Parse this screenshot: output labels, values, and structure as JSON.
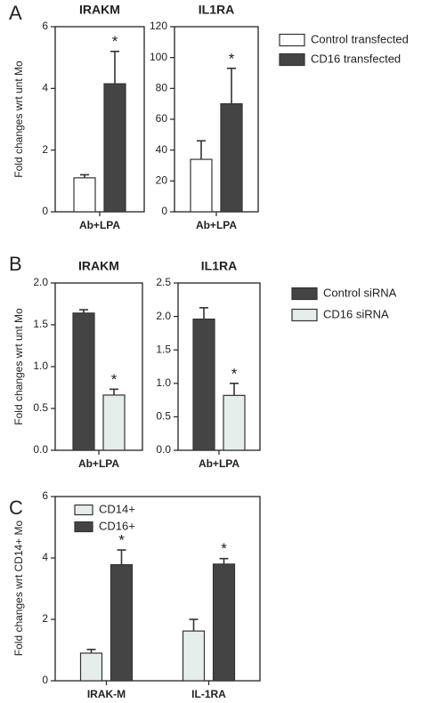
{
  "chart_data": [
    {
      "type": "bar",
      "panel": "A",
      "ylabel": "Fold changes wrt unt Mo",
      "series": [
        {
          "name": "Control transfected",
          "color": "#ffffff"
        },
        {
          "name": "CD16 transfected",
          "color": "#444444"
        }
      ],
      "plots": [
        {
          "title": "IRAKM",
          "categories": [
            "Ab+LPA"
          ],
          "ylim": [
            0,
            6
          ],
          "yticks": [
            0,
            2,
            4,
            6
          ],
          "series": [
            {
              "values": [
                1.1
              ],
              "errors": [
                0.1
              ]
            },
            {
              "values": [
                4.15
              ],
              "errors": [
                1.05
              ],
              "annotations": [
                "*"
              ]
            }
          ]
        },
        {
          "title": "IL1RA",
          "categories": [
            "Ab+LPA"
          ],
          "ylim": [
            0,
            120
          ],
          "yticks": [
            0,
            20,
            40,
            60,
            80,
            100,
            120
          ],
          "series": [
            {
              "values": [
                34
              ],
              "errors": [
                12
              ]
            },
            {
              "values": [
                70
              ],
              "errors": [
                23
              ],
              "annotations": [
                "*"
              ]
            }
          ]
        }
      ]
    },
    {
      "type": "bar",
      "panel": "B",
      "ylabel": "Fold changes wrt unt Mo",
      "series": [
        {
          "name": "Control siRNA",
          "color": "#444444"
        },
        {
          "name": "CD16 siRNA",
          "color": "#e6eeec"
        }
      ],
      "plots": [
        {
          "title": "IRAKM",
          "categories": [
            "Ab+LPA"
          ],
          "ylim": [
            0,
            2
          ],
          "yticks": [
            {
              "value": 0,
              "label": "0.0"
            },
            0.5,
            {
              "value": 1,
              "label": "1.0"
            },
            1.5,
            {
              "value": 2,
              "label": "2.0"
            }
          ],
          "series": [
            {
              "values": [
                1.64
              ],
              "errors": [
                0.04
              ]
            },
            {
              "values": [
                0.66
              ],
              "errors": [
                0.07
              ],
              "annotations": [
                "*"
              ]
            }
          ]
        },
        {
          "title": "IL1RA",
          "categories": [
            "Ab+LPA"
          ],
          "ylim": [
            0,
            2.5
          ],
          "yticks": [
            {
              "value": 0,
              "label": "0.0"
            },
            0.5,
            {
              "value": 1,
              "label": "1.0"
            },
            1.5,
            {
              "value": 2,
              "label": "2.0"
            },
            2.5
          ],
          "series": [
            {
              "values": [
                1.96
              ],
              "errors": [
                0.17
              ]
            },
            {
              "values": [
                0.82
              ],
              "errors": [
                0.18
              ],
              "annotations": [
                "*"
              ]
            }
          ]
        }
      ]
    },
    {
      "type": "bar",
      "panel": "C",
      "ylabel": "Fold changes wrt CD14+ Mo",
      "series": [
        {
          "name": "CD14+",
          "color": "#e6eeec"
        },
        {
          "name": "CD16+",
          "color": "#444444"
        }
      ],
      "plots": [
        {
          "categories": [
            "IRAK-M",
            "IL-1RA"
          ],
          "ylim": [
            0,
            6
          ],
          "yticks": [
            0,
            2,
            4,
            6
          ],
          "series": [
            {
              "values": [
                0.9,
                1.62
              ],
              "errors": [
                0.12,
                0.38
              ]
            },
            {
              "values": [
                3.78,
                3.8
              ],
              "errors": [
                0.48,
                0.18
              ],
              "annotations": [
                "*",
                "*"
              ]
            }
          ]
        }
      ]
    }
  ]
}
